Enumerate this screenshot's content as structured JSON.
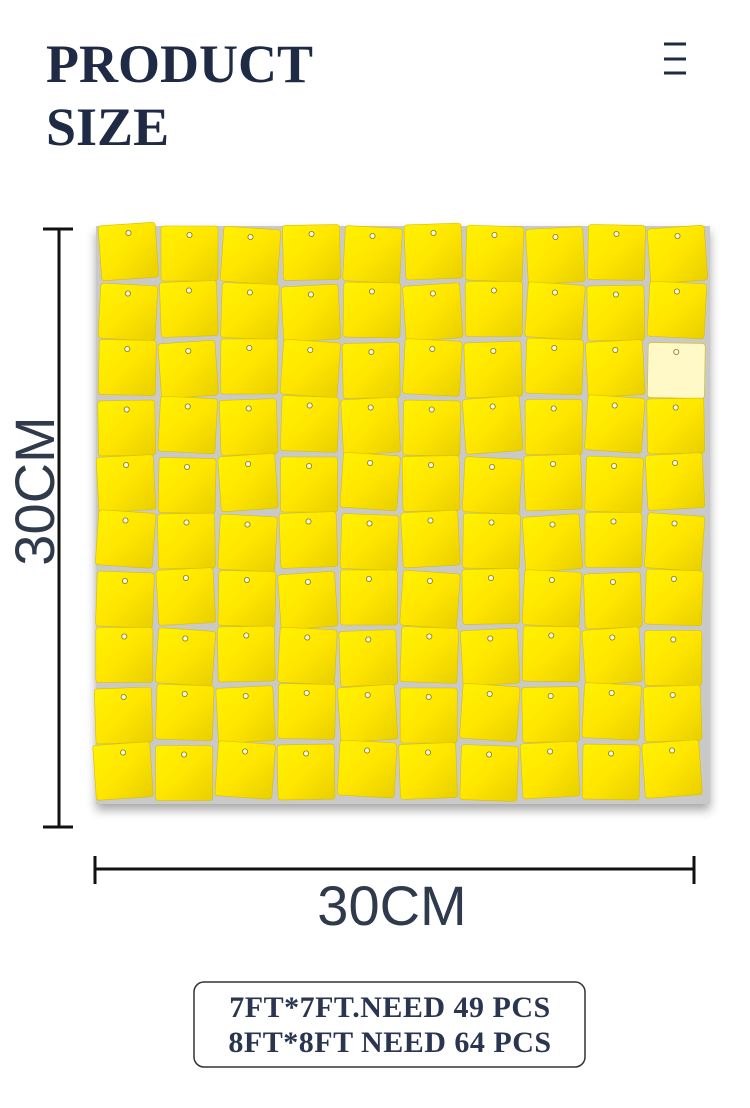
{
  "header": {
    "title_lines": [
      "PRODUCT",
      "SIZE"
    ]
  },
  "dimensions": {
    "height": "30CM",
    "width": "30CM"
  },
  "info_box": {
    "lines": [
      "7FT*7FT.NEED 49 PCS",
      "8FT*8FT NEED 64 PCS"
    ]
  }
}
